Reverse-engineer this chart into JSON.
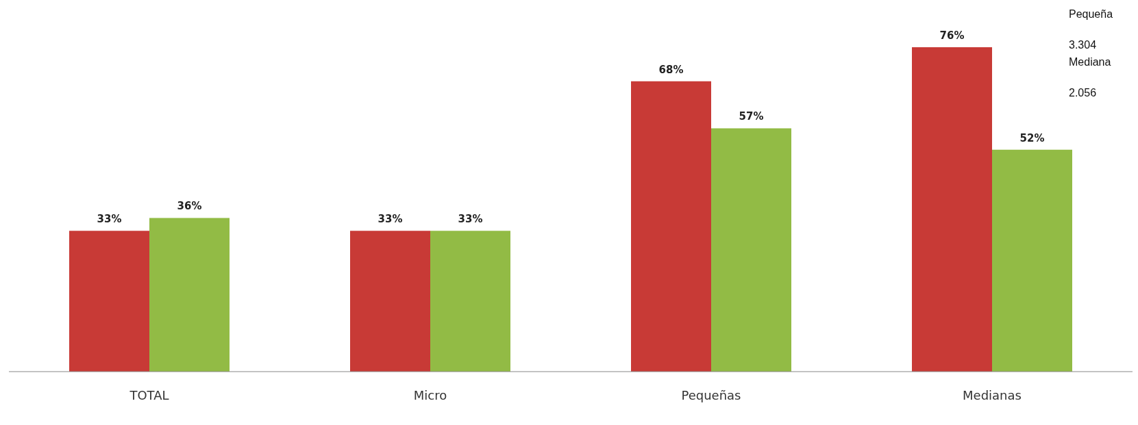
{
  "chart_data": {
    "type": "bar",
    "categories": [
      "TOTAL",
      "Micro",
      "Pequeñas",
      "Medianas"
    ],
    "series": [
      {
        "color": "#c83a36",
        "values": [
          33,
          33,
          68,
          76
        ],
        "value_labels": [
          "33%",
          "33%",
          "68%",
          "76%"
        ]
      },
      {
        "color": "#92bb45",
        "values": [
          36,
          33,
          57,
          52
        ],
        "value_labels": [
          "36%",
          "33%",
          "57%",
          "52%"
        ]
      }
    ],
    "annotations": [
      "Pequeña",
      "3.304",
      "Mediana",
      "2.056"
    ],
    "grid": false,
    "legend": false
  }
}
